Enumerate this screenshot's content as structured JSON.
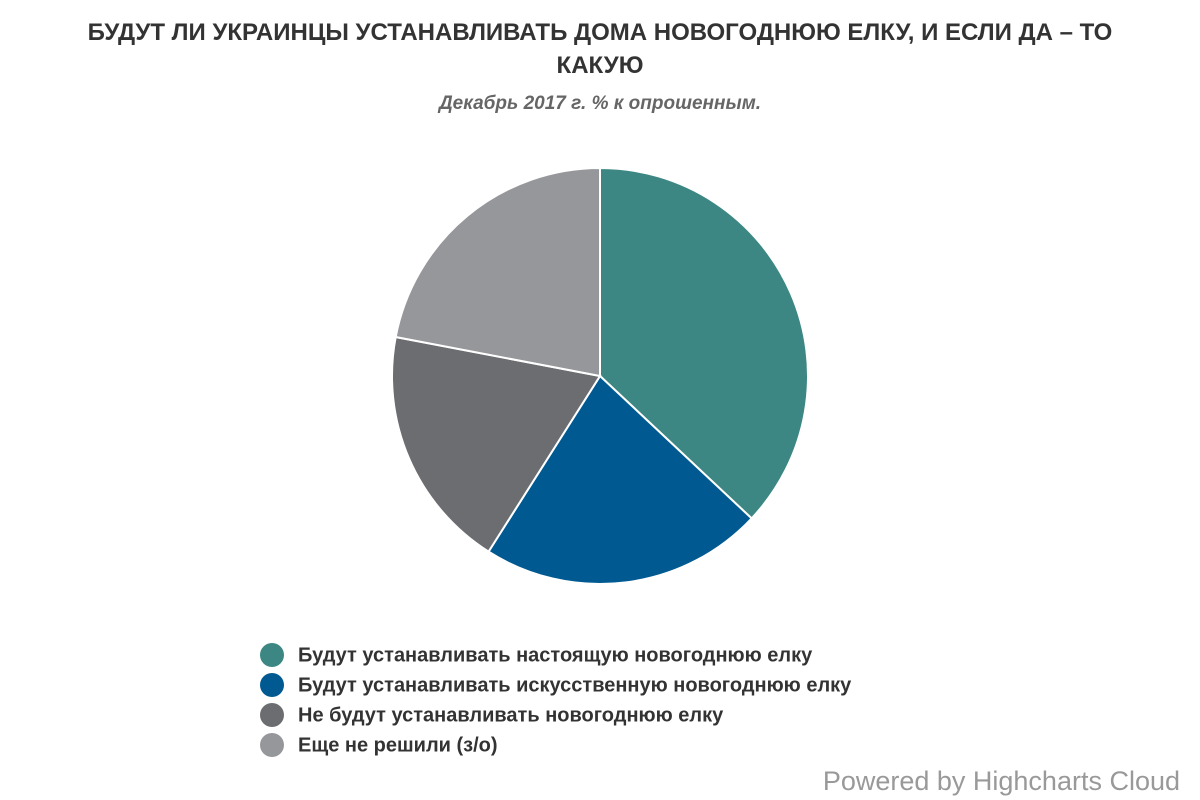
{
  "chart_data": {
    "type": "pie",
    "title": "БУДУТ ЛИ УКРАИНЦЫ УСТАНАВЛИВАТЬ ДОМА НОВОГОДНЮЮ ЕЛКУ, И ЕСЛИ ДА – ТО КАКУЮ",
    "subtitle": "Декабрь 2017 г. % к опрошенным.",
    "categories": [
      "Будут устанавливать настоящую новогоднюю елку",
      "Будут устанавливать искусственную новогоднюю елку",
      "Не будут устанавливать новогоднюю елку",
      "Еще не решили (з/о)"
    ],
    "values": [
      37,
      22,
      19,
      22
    ],
    "colors": [
      "#3c8783",
      "#005a91",
      "#6c6d71",
      "#96979b"
    ],
    "credits": "Powered by Highcharts Cloud"
  }
}
